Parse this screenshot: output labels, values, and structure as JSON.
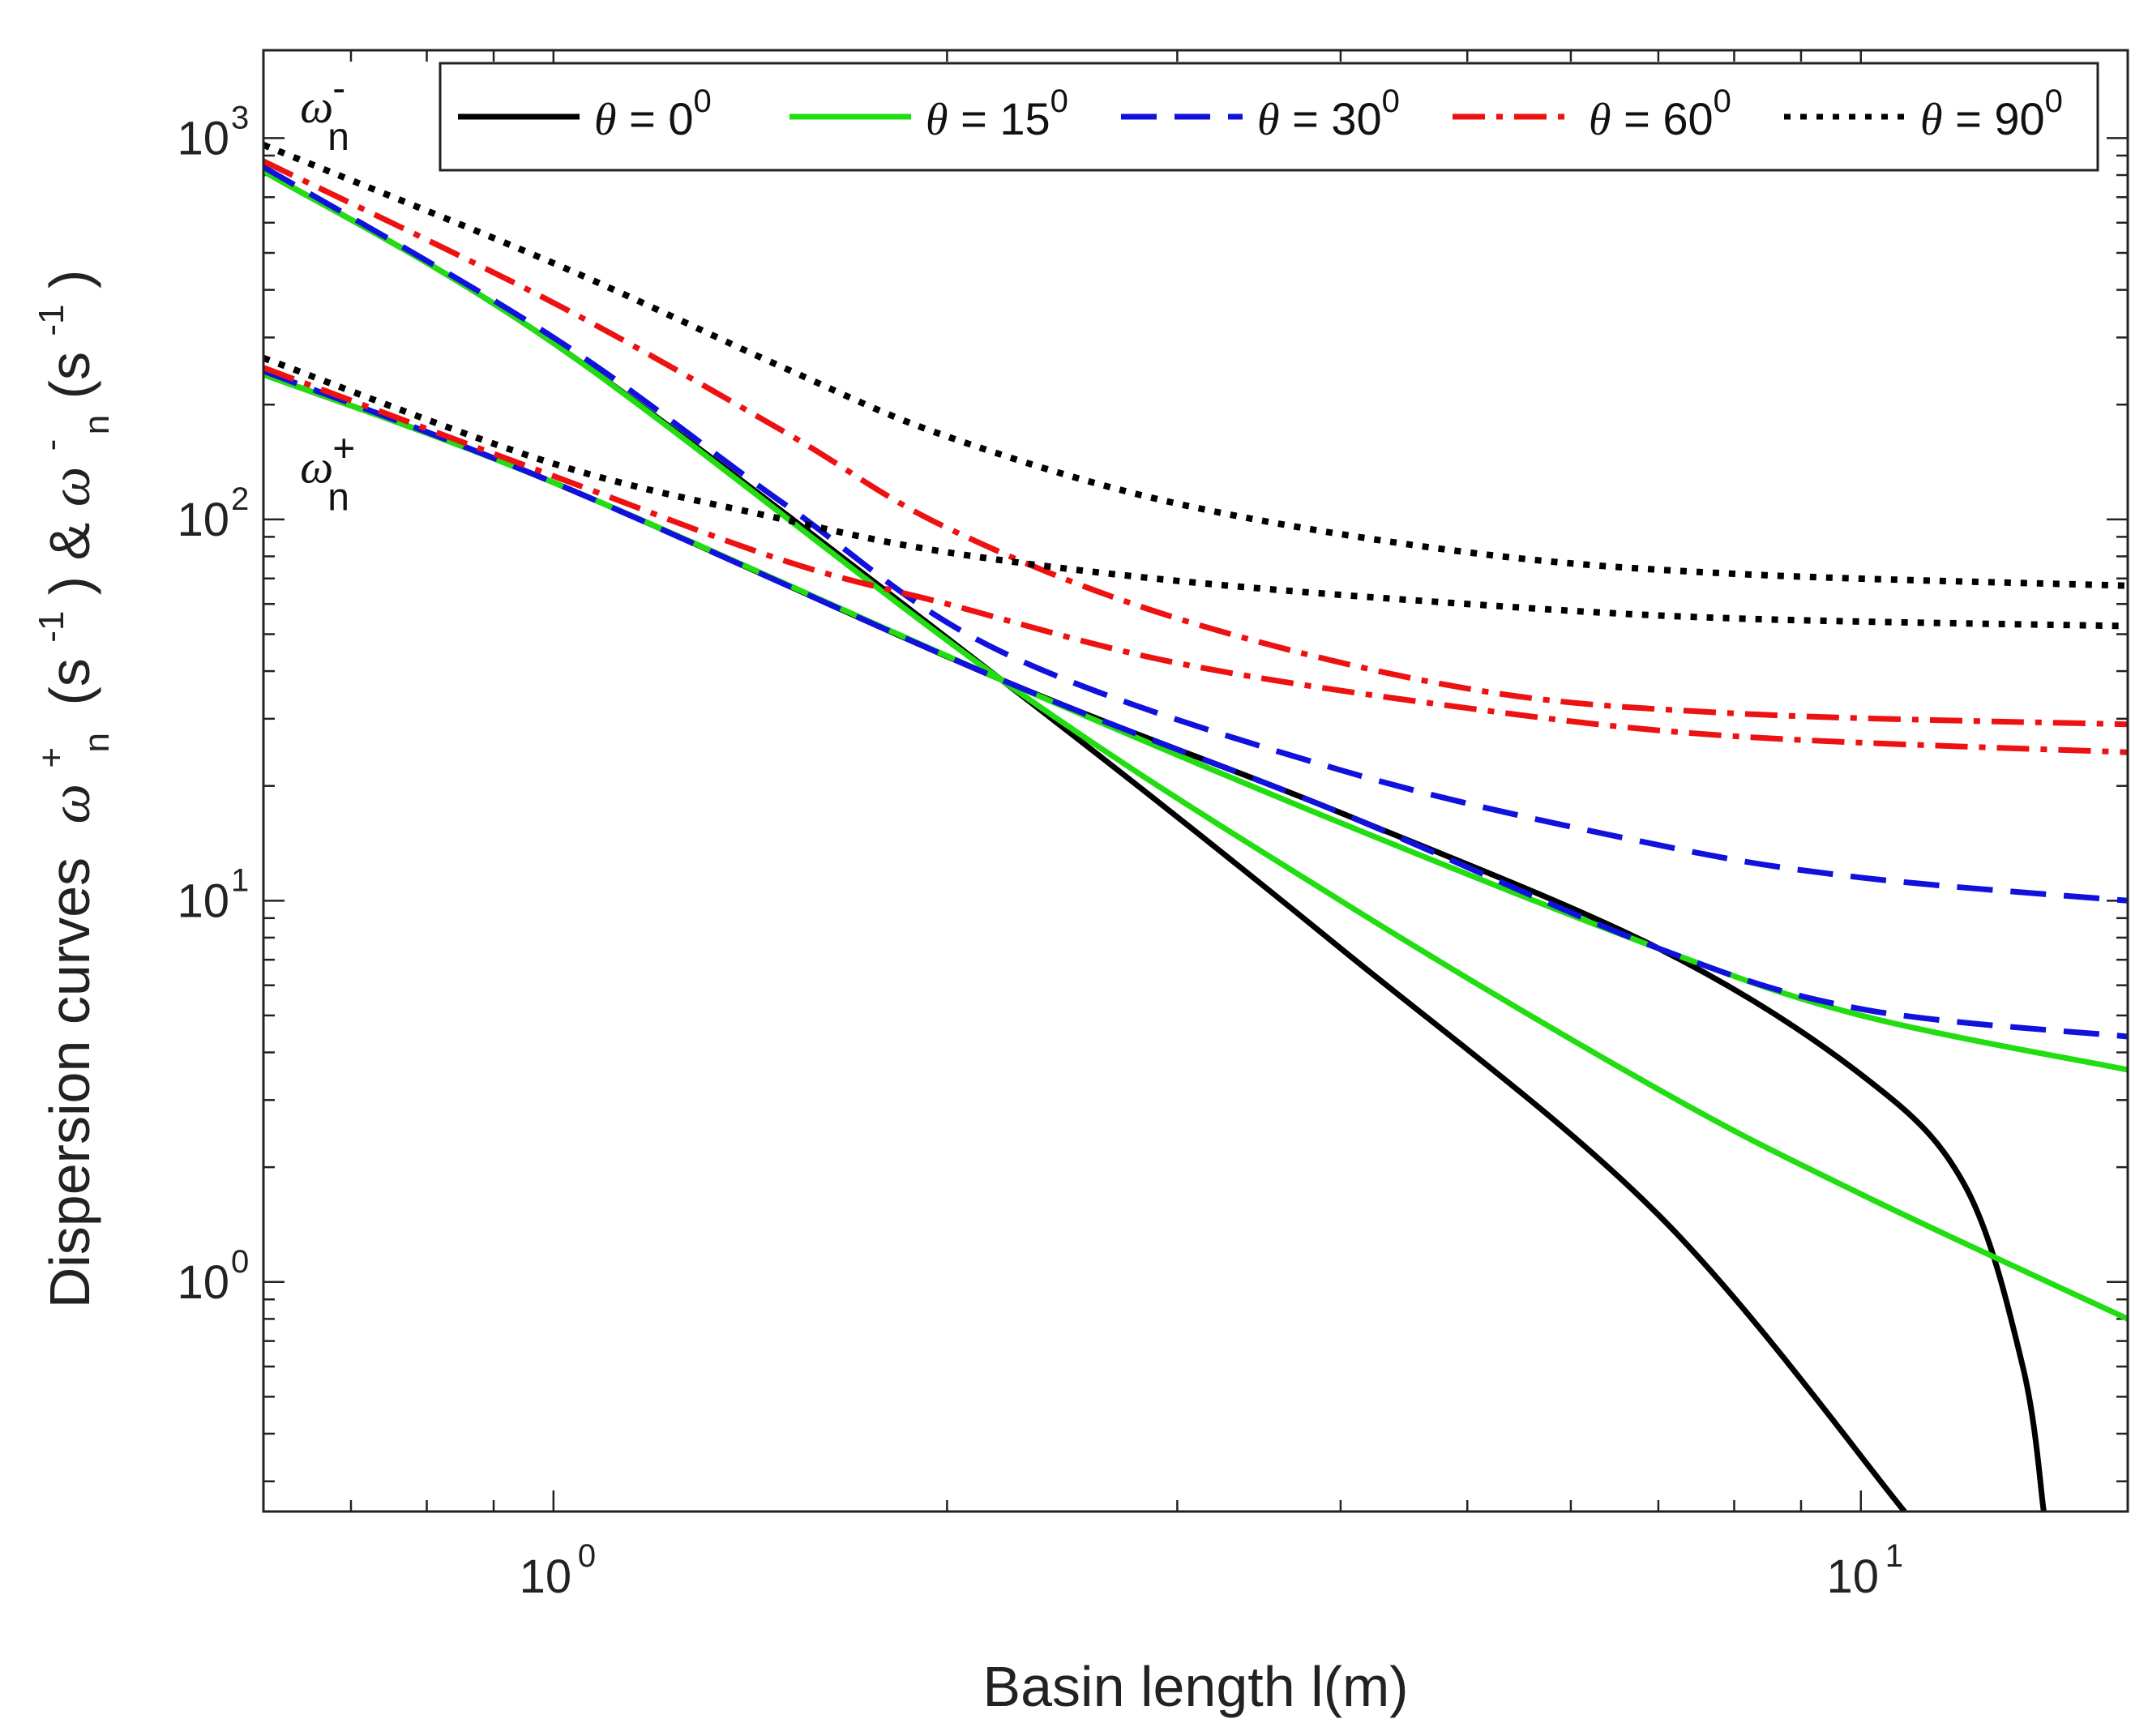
{
  "chart_data": {
    "type": "line",
    "xscale": "log",
    "yscale": "log",
    "xlim": [
      0.6,
      16
    ],
    "ylim": [
      0.25,
      1700
    ],
    "xlabel": "Basin length l(m)",
    "ylabel": {
      "prefix": "Dispersion curves",
      "w1": "ω",
      "w1_sup": "+",
      "w1_sub": "n",
      "u1": "(s",
      "u1_sup": "-1",
      "mid": ") & ",
      "w2": "ω",
      "w2_sup": "-",
      "w2_sub": "n",
      "u2": "(s",
      "u2_sup": "-1",
      "end": ")"
    },
    "xticks": [
      {
        "value": 1,
        "base": "10",
        "exp": "0"
      },
      {
        "value": 10,
        "base": "10",
        "exp": "1"
      }
    ],
    "yticks": [
      {
        "value": 1,
        "base": "10",
        "exp": "0"
      },
      {
        "value": 10,
        "base": "10",
        "exp": "1"
      },
      {
        "value": 100,
        "base": "10",
        "exp": "2"
      },
      {
        "value": 1000,
        "base": "10",
        "exp": "3"
      }
    ],
    "annotations": [
      {
        "name": "omega-minus",
        "symbol": "ω",
        "sub": "n",
        "sup": "-",
        "x": 0.64,
        "y": 1100
      },
      {
        "name": "omega-plus",
        "symbol": "ω",
        "sub": "n",
        "sup": "+",
        "x": 0.64,
        "y": 125
      }
    ],
    "legend": {
      "position": "top-right"
    },
    "series": [
      {
        "name": "θ = 0°",
        "symbol": "θ",
        "eq": " = 0",
        "sup": "0",
        "color": "#000000",
        "dash": "solid",
        "branch": "omega-minus",
        "x": [
          0.6,
          1.0,
          2.2,
          4,
          7,
          10.8
        ],
        "y": [
          820,
          290,
          38,
          7.5,
          1.5,
          0.25
        ]
      },
      {
        "name": "θ = 0°",
        "symbol": "θ",
        "eq": " = 0",
        "sup": "0",
        "color": "#000000",
        "dash": "solid",
        "branch": "omega-plus",
        "x": [
          0.6,
          1.0,
          2.2,
          4,
          7,
          10,
          12,
          13.3,
          13.8
        ],
        "y": [
          240,
          125,
          38,
          17,
          7.5,
          3.5,
          1.8,
          0.6,
          0.25
        ]
      },
      {
        "name": "θ = 15°",
        "symbol": "θ",
        "eq": " = 15",
        "sup": "0",
        "color": "#22dd11",
        "dash": "solid",
        "branch": "omega-minus",
        "x": [
          0.6,
          1.0,
          2.2,
          4,
          7,
          10,
          16
        ],
        "y": [
          820,
          290,
          38,
          10,
          3.2,
          1.7,
          0.8
        ]
      },
      {
        "name": "θ = 15°",
        "symbol": "θ",
        "eq": " = 15",
        "sup": "0",
        "color": "#22dd11",
        "dash": "solid",
        "branch": "omega-plus",
        "x": [
          0.6,
          1.0,
          2.2,
          4,
          7,
          10,
          16
        ],
        "y": [
          240,
          125,
          38,
          16,
          7.5,
          5.0,
          3.6
        ]
      },
      {
        "name": "θ = 30°",
        "symbol": "θ",
        "eq": " = 30",
        "sup": "0",
        "color": "#1111dd",
        "dash": "dashed",
        "branch": "omega-minus",
        "x": [
          0.6,
          1.0,
          1.5,
          2.2,
          4,
          7,
          10,
          16
        ],
        "y": [
          840,
          300,
          110,
          45,
          22,
          14,
          11.5,
          10
        ]
      },
      {
        "name": "θ = 30°",
        "symbol": "θ",
        "eq": " = 30",
        "sup": "0",
        "color": "#1111dd",
        "dash": "dashed",
        "branch": "omega-plus",
        "x": [
          0.6,
          1.0,
          2.2,
          4,
          7,
          10,
          16
        ],
        "y": [
          245,
          125,
          38,
          17,
          7.5,
          5.2,
          4.4
        ]
      },
      {
        "name": "θ = 60°",
        "symbol": "θ",
        "eq": " = 60",
        "sup": "0",
        "color": "#ee1111",
        "dash": "dashdot",
        "branch": "omega-minus",
        "x": [
          0.6,
          1.0,
          1.5,
          2.0,
          3.0,
          5,
          8,
          16
        ],
        "y": [
          870,
          370,
          170,
          95,
          55,
          36,
          31,
          29
        ]
      },
      {
        "name": "θ = 60°",
        "symbol": "θ",
        "eq": " = 60",
        "sup": "0",
        "color": "#ee1111",
        "dash": "dashdot",
        "branch": "omega-plus",
        "x": [
          0.6,
          1.0,
          1.5,
          2.0,
          3.0,
          5,
          8,
          16
        ],
        "y": [
          250,
          130,
          78,
          60,
          42,
          32,
          27,
          24.5
        ]
      },
      {
        "name": "θ = 90°",
        "symbol": "θ",
        "eq": " = 90",
        "sup": "0",
        "color": "#000000",
        "dash": "dotted",
        "branch": "omega-minus",
        "x": [
          0.6,
          1.0,
          1.5,
          2.0,
          3.0,
          5,
          8,
          16
        ],
        "y": [
          960,
          470,
          250,
          165,
          110,
          82,
          72,
          67
        ]
      },
      {
        "name": "θ = 90°",
        "symbol": "θ",
        "eq": " = 90",
        "sup": "0",
        "color": "#000000",
        "dash": "dotted",
        "branch": "omega-plus",
        "x": [
          0.6,
          1.0,
          1.5,
          2.0,
          3.0,
          5,
          8,
          16
        ],
        "y": [
          265,
          140,
          100,
          82,
          69,
          60,
          55,
          52.5
        ]
      }
    ]
  }
}
